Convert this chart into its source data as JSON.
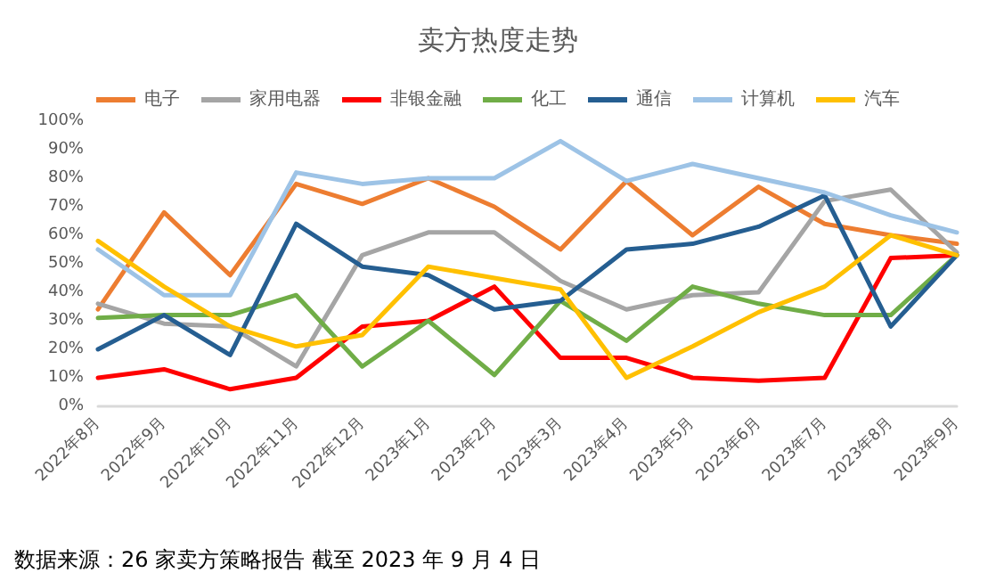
{
  "chart_data": {
    "type": "line",
    "title": "卖方热度走势",
    "categories": [
      "2022年8月",
      "2022年9月",
      "2022年10月",
      "2022年11月",
      "2022年12月",
      "2023年1月",
      "2023年2月",
      "2023年3月",
      "2023年4月",
      "2023年5月",
      "2023年6月",
      "2023年7月",
      "2023年8月",
      "2023年9月"
    ],
    "series": [
      {
        "name": "电子",
        "color": "#ed7d31",
        "values": [
          34,
          68,
          46,
          78,
          71,
          80,
          70,
          55,
          79,
          60,
          77,
          64,
          60,
          57
        ]
      },
      {
        "name": "家用电器",
        "color": "#a5a5a5",
        "values": [
          36,
          29,
          28,
          14,
          53,
          61,
          61,
          44,
          34,
          39,
          40,
          72,
          76,
          54
        ]
      },
      {
        "name": "非银金融",
        "color": "#ff0000",
        "values": [
          10,
          13,
          6,
          10,
          28,
          30,
          42,
          17,
          17,
          10,
          9,
          10,
          52,
          53
        ]
      },
      {
        "name": "化工",
        "color": "#70ad47",
        "values": [
          31,
          32,
          32,
          39,
          14,
          30,
          11,
          37,
          23,
          42,
          36,
          32,
          32,
          53
        ]
      },
      {
        "name": "通信",
        "color": "#255e91",
        "values": [
          20,
          32,
          18,
          64,
          49,
          46,
          34,
          37,
          55,
          57,
          63,
          74,
          28,
          53
        ]
      },
      {
        "name": "计算机",
        "color": "#9dc3e6",
        "values": [
          55,
          39,
          39,
          82,
          78,
          80,
          80,
          93,
          79,
          85,
          80,
          75,
          67,
          61
        ]
      },
      {
        "name": "汽车",
        "color": "#ffc000",
        "values": [
          58,
          42,
          28,
          21,
          25,
          49,
          45,
          41,
          10,
          21,
          33,
          42,
          60,
          53
        ]
      }
    ],
    "ylim": [
      0,
      100
    ],
    "yticks": [
      {
        "value": 0,
        "label": "0%"
      },
      {
        "value": 10,
        "label": "10%"
      },
      {
        "value": 20,
        "label": "20%"
      },
      {
        "value": 30,
        "label": "30%"
      },
      {
        "value": 40,
        "label": "40%"
      },
      {
        "value": 50,
        "label": "50%"
      },
      {
        "value": 60,
        "label": "60%"
      },
      {
        "value": 70,
        "label": "70%"
      },
      {
        "value": 80,
        "label": "80%"
      },
      {
        "value": 90,
        "label": "90%"
      },
      {
        "value": 100,
        "label": "100%"
      }
    ],
    "grid": false,
    "legend": "top",
    "marker": "none",
    "line_style": "solid",
    "annotations": [
      "数据来源：26 家卖方策略报告 截至 2023 年 9 月 4 日"
    ]
  }
}
